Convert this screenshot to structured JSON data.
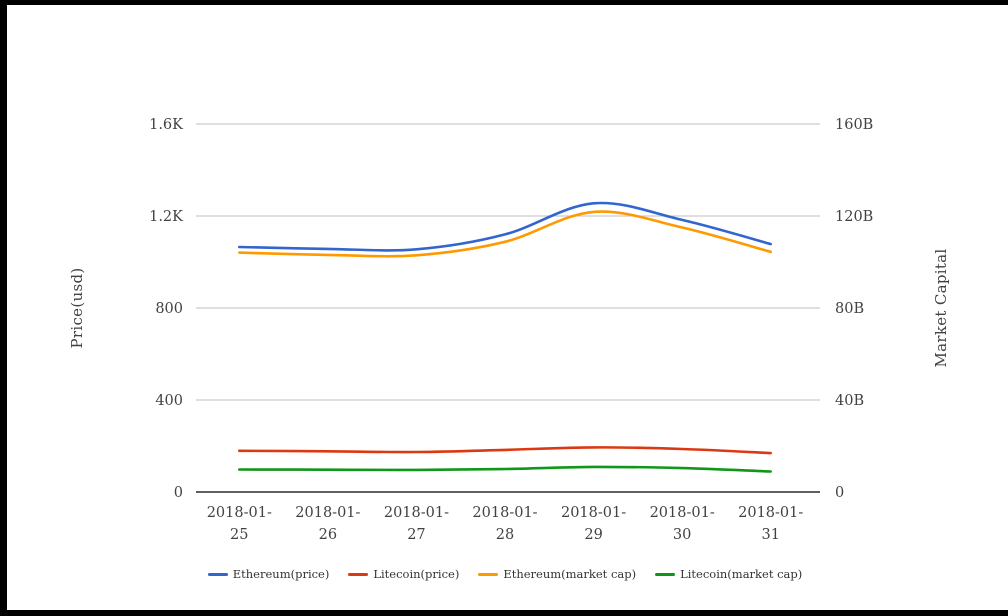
{
  "chart_data": {
    "type": "line",
    "title": "",
    "categories": [
      "2018-01-25",
      "2018-01-26",
      "2018-01-27",
      "2018-01-28",
      "2018-01-29",
      "2018-01-30",
      "2018-01-31"
    ],
    "series": [
      {
        "name": "Ethereum(price)",
        "axis": "left",
        "color": "#3366cc",
        "values": [
          1065,
          1057,
          1055,
          1120,
          1255,
          1183,
          1078
        ]
      },
      {
        "name": "Litecoin(price)",
        "axis": "left",
        "color": "#dc3912",
        "values": [
          179,
          177,
          174,
          183,
          194,
          187,
          169
        ]
      },
      {
        "name": "Ethereum(market cap)",
        "axis": "right",
        "color": "#ff9900",
        "values": [
          104.1,
          103.1,
          102.9,
          108.8,
          121.8,
          115.0,
          104.4
        ]
      },
      {
        "name": "Litecoin(market cap)",
        "axis": "right",
        "color": "#109618",
        "values": [
          9.8,
          9.7,
          9.6,
          10.0,
          10.9,
          10.4,
          8.9
        ]
      }
    ],
    "left_axis": {
      "label": "Price(usd)",
      "min": 0,
      "max": 1600,
      "ticks": [
        {
          "value": 0,
          "label": "0"
        },
        {
          "value": 400,
          "label": "400"
        },
        {
          "value": 800,
          "label": "800"
        },
        {
          "value": 1200,
          "label": "1.2K"
        },
        {
          "value": 1600,
          "label": "1.6K"
        }
      ]
    },
    "right_axis": {
      "label": "Market Capital",
      "min": 0,
      "max": 160,
      "ticks": [
        {
          "value": 0,
          "label": "0"
        },
        {
          "value": 40,
          "label": "40B"
        },
        {
          "value": 80,
          "label": "80B"
        },
        {
          "value": 120,
          "label": "120B"
        },
        {
          "value": 160,
          "label": "160B"
        }
      ]
    },
    "legend": {
      "position": "bottom",
      "items": [
        "Ethereum(price)",
        "Litecoin(price)",
        "Ethereum(market cap)",
        "Litecoin(market cap)"
      ]
    },
    "grid": true,
    "colors": {
      "text": "#424242",
      "gridline": "#cccccc",
      "axis_line": "#2b2b2b",
      "background": "#ffffff",
      "frame": "#000000"
    }
  }
}
